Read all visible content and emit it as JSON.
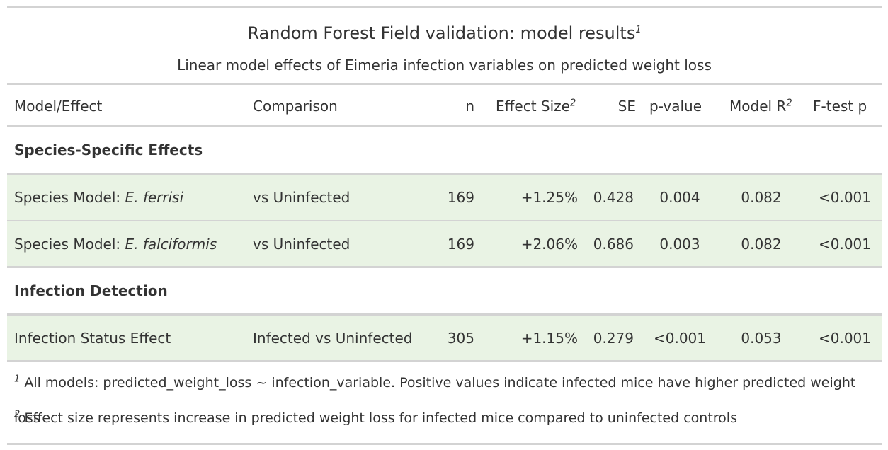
{
  "title": "Random Forest Field validation: model results",
  "title_note": "1",
  "subtitle": "Linear model effects of Eimeria infection variables on predicted weight loss",
  "columns": {
    "model_effect": "Model/Effect",
    "comparison": "Comparison",
    "n": "n",
    "effect_size": "Effect Size",
    "effect_size_note": "2",
    "se": "SE",
    "p_value": "p-value",
    "model_r": "Model R",
    "model_r_sup": "2",
    "f_test": "F-test p"
  },
  "groups": [
    {
      "label": "Species-Specific Effects",
      "rows": [
        {
          "prefix": "Species Model: ",
          "species": "E. ferrisi",
          "comparison": "vs Uninfected",
          "n": "169",
          "effect": "+1.25%",
          "se": "0.428",
          "p": "0.004",
          "r2": "0.082",
          "f": "<0.001"
        },
        {
          "prefix": "Species Model: ",
          "species": "E. falciformis",
          "comparison": "vs Uninfected",
          "n": "169",
          "effect": "+2.06%",
          "se": "0.686",
          "p": "0.003",
          "r2": "0.082",
          "f": "<0.001"
        }
      ]
    },
    {
      "label": "Infection Detection",
      "rows": [
        {
          "prefix": "Infection Status Effect",
          "species": "",
          "comparison": "Infected vs Uninfected",
          "n": "305",
          "effect": "+1.15%",
          "se": "0.279",
          "p": "<0.001",
          "r2": "0.053",
          "f": "<0.001"
        }
      ]
    }
  ],
  "footnotes": [
    {
      "mark": "1",
      "text": "All models: predicted_weight_loss ~ infection_variable. Positive values indicate infected mice have higher predicted weight loss"
    },
    {
      "mark": "2",
      "text": "Effect size represents increase in predicted weight loss for infected mice compared to uninfected controls"
    }
  ],
  "colors": {
    "row_fill": "#e9f3e4",
    "rule": "#d3d3d3",
    "text": "#333333"
  }
}
